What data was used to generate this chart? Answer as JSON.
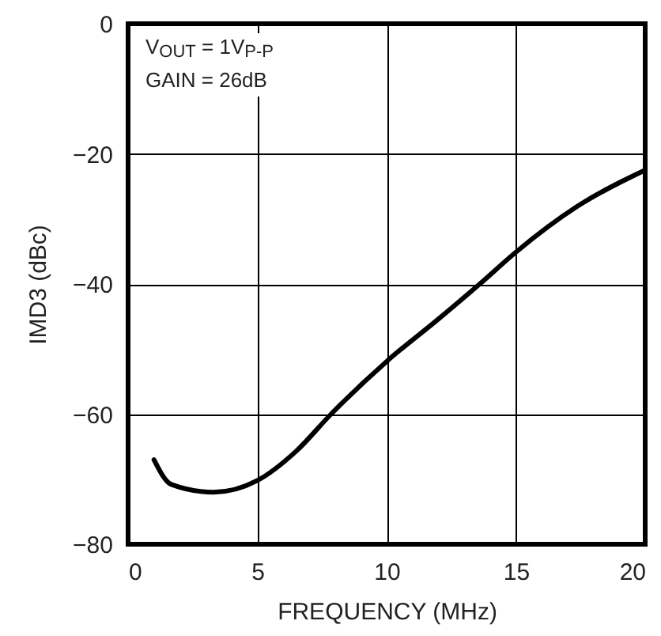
{
  "chart_data": {
    "type": "line",
    "xlabel": "FREQUENCY (MHz)",
    "ylabel": "IMD3 (dBc)",
    "annotations": [
      "V$_{OUT}$ = 1V$_{P-P}$",
      "GAIN = 26dB"
    ],
    "x": [
      1,
      1.67,
      3.3,
      5,
      6.5,
      7.85,
      10,
      12,
      13.6,
      15,
      17.4,
      20
    ],
    "series": [
      {
        "color": "#000000",
        "values": [
          -67,
          -70.8,
          -72,
          -70.2,
          -65.7,
          -60,
          -51.9,
          -45.4,
          -40,
          -35.1,
          -28,
          -22.5
        ]
      }
    ],
    "xlim": [
      0,
      20
    ],
    "xticks": [
      0,
      5,
      10,
      15,
      20
    ],
    "ylim": [
      -80,
      0
    ],
    "yticks": [
      -80,
      -60,
      -40,
      -20,
      0
    ],
    "grid": true,
    "marker": "none",
    "line_style": "solid"
  }
}
